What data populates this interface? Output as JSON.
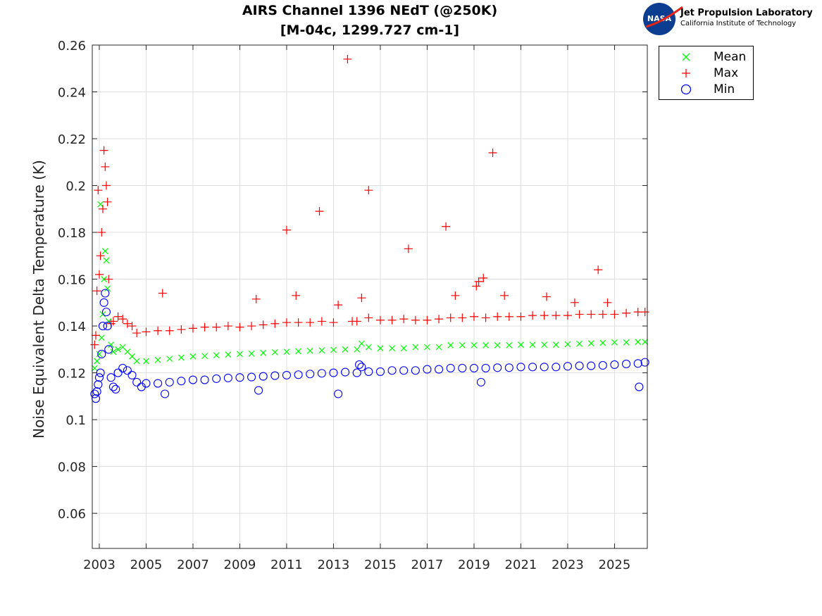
{
  "header": {
    "title_line1": "AIRS Channel 1396 NEdT (@250K)",
    "title_line2": "[M-04c, 1299.727 cm-1]"
  },
  "logo": {
    "emblem_text": "NASA",
    "name": "Jet Propulsion Laboratory",
    "subtitle": "California Institute of Technology",
    "emblem_color": "#0b3d91",
    "swoosh_color": "#e0261a"
  },
  "chart_data": {
    "type": "scatter",
    "title": "AIRS Channel 1396 NEdT (@250K)\n[M-04c, 1299.727 cm-1]",
    "xlabel": "",
    "ylabel": "Noise Equivalent Delta Temperature (K)",
    "xlim": [
      2002.7,
      2026.4
    ],
    "ylim": [
      0.045,
      0.26
    ],
    "x_ticks": [
      2003,
      2005,
      2007,
      2009,
      2011,
      2013,
      2015,
      2017,
      2019,
      2021,
      2023,
      2025
    ],
    "y_ticks": [
      0.06,
      0.08,
      0.1,
      0.12,
      0.14,
      0.16,
      0.18,
      0.2,
      0.22,
      0.24,
      0.26
    ],
    "y_tick_labels": [
      "0.06",
      "0.08",
      "0.1",
      "0.12",
      "0.14",
      "0.16",
      "0.18",
      "0.2",
      "0.22",
      "0.24",
      "0.26"
    ],
    "grid": true,
    "legend_position": "outside-top-right",
    "series": [
      {
        "name": "Mean",
        "marker": "x",
        "color": "#00ff00",
        "points": [
          [
            2002.8,
            0.122
          ],
          [
            2002.9,
            0.125
          ],
          [
            2003.0,
            0.128
          ],
          [
            2003.05,
            0.192
          ],
          [
            2003.1,
            0.135
          ],
          [
            2003.15,
            0.145
          ],
          [
            2003.2,
            0.16
          ],
          [
            2003.25,
            0.172
          ],
          [
            2003.3,
            0.168
          ],
          [
            2003.35,
            0.156
          ],
          [
            2003.4,
            0.142
          ],
          [
            2003.5,
            0.132
          ],
          [
            2003.6,
            0.129
          ],
          [
            2003.8,
            0.13
          ],
          [
            2004.0,
            0.131
          ],
          [
            2004.2,
            0.129
          ],
          [
            2004.4,
            0.127
          ],
          [
            2004.6,
            0.125
          ],
          [
            2005.0,
            0.125
          ],
          [
            2005.5,
            0.1255
          ],
          [
            2006.0,
            0.126
          ],
          [
            2006.5,
            0.1265
          ],
          [
            2007.0,
            0.127
          ],
          [
            2007.5,
            0.1272
          ],
          [
            2008.0,
            0.1275
          ],
          [
            2008.5,
            0.1278
          ],
          [
            2009.0,
            0.128
          ],
          [
            2009.5,
            0.1282
          ],
          [
            2010.0,
            0.1285
          ],
          [
            2010.5,
            0.1288
          ],
          [
            2011.0,
            0.129
          ],
          [
            2011.5,
            0.1292
          ],
          [
            2012.0,
            0.1294
          ],
          [
            2012.5,
            0.1296
          ],
          [
            2013.0,
            0.1298
          ],
          [
            2013.5,
            0.13
          ],
          [
            2014.0,
            0.13
          ],
          [
            2014.2,
            0.1325
          ],
          [
            2014.5,
            0.131
          ],
          [
            2015.0,
            0.1305
          ],
          [
            2015.5,
            0.1305
          ],
          [
            2016.0,
            0.1305
          ],
          [
            2016.5,
            0.131
          ],
          [
            2017.0,
            0.131
          ],
          [
            2017.5,
            0.131
          ],
          [
            2018.0,
            0.1318
          ],
          [
            2018.5,
            0.1318
          ],
          [
            2019.0,
            0.1318
          ],
          [
            2019.5,
            0.1318
          ],
          [
            2020.0,
            0.1318
          ],
          [
            2020.5,
            0.1318
          ],
          [
            2021.0,
            0.132
          ],
          [
            2021.5,
            0.132
          ],
          [
            2022.0,
            0.132
          ],
          [
            2022.5,
            0.132
          ],
          [
            2023.0,
            0.1322
          ],
          [
            2023.5,
            0.1324
          ],
          [
            2024.0,
            0.1326
          ],
          [
            2024.5,
            0.1328
          ],
          [
            2025.0,
            0.133
          ],
          [
            2025.5,
            0.133
          ],
          [
            2026.0,
            0.1332
          ],
          [
            2026.3,
            0.1332
          ]
        ]
      },
      {
        "name": "Max",
        "marker": "+",
        "color": "#ff0000",
        "points": [
          [
            2002.8,
            0.132
          ],
          [
            2002.85,
            0.136
          ],
          [
            2002.9,
            0.155
          ],
          [
            2002.95,
            0.198
          ],
          [
            2003.0,
            0.162
          ],
          [
            2003.05,
            0.17
          ],
          [
            2003.1,
            0.18
          ],
          [
            2003.15,
            0.19
          ],
          [
            2003.2,
            0.215
          ],
          [
            2003.25,
            0.208
          ],
          [
            2003.3,
            0.2
          ],
          [
            2003.35,
            0.193
          ],
          [
            2003.4,
            0.16
          ],
          [
            2003.5,
            0.141
          ],
          [
            2003.6,
            0.142
          ],
          [
            2003.8,
            0.144
          ],
          [
            2004.0,
            0.143
          ],
          [
            2004.2,
            0.141
          ],
          [
            2004.4,
            0.14
          ],
          [
            2004.6,
            0.137
          ],
          [
            2005.0,
            0.1375
          ],
          [
            2005.5,
            0.138
          ],
          [
            2005.7,
            0.154
          ],
          [
            2006.0,
            0.138
          ],
          [
            2006.5,
            0.1385
          ],
          [
            2007.0,
            0.139
          ],
          [
            2007.5,
            0.1395
          ],
          [
            2008.0,
            0.1395
          ],
          [
            2008.5,
            0.14
          ],
          [
            2009.0,
            0.1395
          ],
          [
            2009.5,
            0.14
          ],
          [
            2009.7,
            0.1515
          ],
          [
            2010.0,
            0.1405
          ],
          [
            2010.5,
            0.141
          ],
          [
            2011.0,
            0.1415
          ],
          [
            2011.0,
            0.181
          ],
          [
            2011.4,
            0.153
          ],
          [
            2011.5,
            0.1415
          ],
          [
            2012.0,
            0.1415
          ],
          [
            2012.4,
            0.189
          ],
          [
            2012.5,
            0.142
          ],
          [
            2013.0,
            0.1415
          ],
          [
            2013.2,
            0.149
          ],
          [
            2013.6,
            0.254
          ],
          [
            2013.8,
            0.142
          ],
          [
            2014.0,
            0.142
          ],
          [
            2014.2,
            0.152
          ],
          [
            2014.5,
            0.198
          ],
          [
            2014.5,
            0.1435
          ],
          [
            2015.0,
            0.1425
          ],
          [
            2015.5,
            0.1425
          ],
          [
            2016.0,
            0.143
          ],
          [
            2016.2,
            0.173
          ],
          [
            2016.5,
            0.1425
          ],
          [
            2017.0,
            0.1425
          ],
          [
            2017.5,
            0.143
          ],
          [
            2017.8,
            0.1825
          ],
          [
            2018.0,
            0.1435
          ],
          [
            2018.2,
            0.153
          ],
          [
            2018.5,
            0.1435
          ],
          [
            2019.0,
            0.144
          ],
          [
            2019.1,
            0.157
          ],
          [
            2019.2,
            0.159
          ],
          [
            2019.4,
            0.1605
          ],
          [
            2019.5,
            0.1435
          ],
          [
            2019.8,
            0.214
          ],
          [
            2020.0,
            0.144
          ],
          [
            2020.3,
            0.153
          ],
          [
            2020.5,
            0.144
          ],
          [
            2021.0,
            0.144
          ],
          [
            2021.5,
            0.1445
          ],
          [
            2022.0,
            0.1445
          ],
          [
            2022.1,
            0.1525
          ],
          [
            2022.5,
            0.1445
          ],
          [
            2023.0,
            0.1445
          ],
          [
            2023.3,
            0.15
          ],
          [
            2023.5,
            0.145
          ],
          [
            2024.0,
            0.145
          ],
          [
            2024.3,
            0.164
          ],
          [
            2024.5,
            0.145
          ],
          [
            2024.7,
            0.15
          ],
          [
            2025.0,
            0.145
          ],
          [
            2025.5,
            0.1455
          ],
          [
            2026.0,
            0.146
          ],
          [
            2026.3,
            0.146
          ]
        ]
      },
      {
        "name": "Min",
        "marker": "o",
        "color": "#0000ff",
        "points": [
          [
            2002.8,
            0.111
          ],
          [
            2002.85,
            0.109
          ],
          [
            2002.9,
            0.112
          ],
          [
            2002.95,
            0.115
          ],
          [
            2003.0,
            0.118
          ],
          [
            2003.05,
            0.12
          ],
          [
            2003.1,
            0.128
          ],
          [
            2003.15,
            0.14
          ],
          [
            2003.2,
            0.15
          ],
          [
            2003.25,
            0.154
          ],
          [
            2003.3,
            0.146
          ],
          [
            2003.35,
            0.14
          ],
          [
            2003.4,
            0.13
          ],
          [
            2003.5,
            0.118
          ],
          [
            2003.6,
            0.114
          ],
          [
            2003.7,
            0.113
          ],
          [
            2003.8,
            0.12
          ],
          [
            2004.0,
            0.122
          ],
          [
            2004.2,
            0.121
          ],
          [
            2004.4,
            0.119
          ],
          [
            2004.6,
            0.116
          ],
          [
            2004.8,
            0.114
          ],
          [
            2005.0,
            0.1155
          ],
          [
            2005.5,
            0.1155
          ],
          [
            2005.8,
            0.111
          ],
          [
            2006.0,
            0.116
          ],
          [
            2006.5,
            0.1165
          ],
          [
            2007.0,
            0.117
          ],
          [
            2007.5,
            0.117
          ],
          [
            2008.0,
            0.1175
          ],
          [
            2008.5,
            0.1178
          ],
          [
            2009.0,
            0.118
          ],
          [
            2009.5,
            0.1182
          ],
          [
            2009.8,
            0.1125
          ],
          [
            2010.0,
            0.1185
          ],
          [
            2010.5,
            0.1188
          ],
          [
            2011.0,
            0.119
          ],
          [
            2011.5,
            0.1192
          ],
          [
            2012.0,
            0.1195
          ],
          [
            2012.5,
            0.1198
          ],
          [
            2013.0,
            0.12
          ],
          [
            2013.2,
            0.111
          ],
          [
            2013.5,
            0.1203
          ],
          [
            2014.0,
            0.12
          ],
          [
            2014.1,
            0.1235
          ],
          [
            2014.2,
            0.1225
          ],
          [
            2014.5,
            0.1205
          ],
          [
            2015.0,
            0.1205
          ],
          [
            2015.5,
            0.121
          ],
          [
            2016.0,
            0.121
          ],
          [
            2016.5,
            0.121
          ],
          [
            2017.0,
            0.1215
          ],
          [
            2017.5,
            0.1215
          ],
          [
            2018.0,
            0.122
          ],
          [
            2018.5,
            0.122
          ],
          [
            2019.0,
            0.122
          ],
          [
            2019.3,
            0.116
          ],
          [
            2019.5,
            0.122
          ],
          [
            2020.0,
            0.1222
          ],
          [
            2020.5,
            0.1222
          ],
          [
            2021.0,
            0.1225
          ],
          [
            2021.5,
            0.1225
          ],
          [
            2022.0,
            0.1225
          ],
          [
            2022.5,
            0.1225
          ],
          [
            2023.0,
            0.1228
          ],
          [
            2023.5,
            0.123
          ],
          [
            2024.0,
            0.123
          ],
          [
            2024.5,
            0.1232
          ],
          [
            2025.0,
            0.1235
          ],
          [
            2025.5,
            0.1238
          ],
          [
            2026.0,
            0.124
          ],
          [
            2026.05,
            0.114
          ],
          [
            2026.3,
            0.1245
          ]
        ]
      }
    ]
  }
}
